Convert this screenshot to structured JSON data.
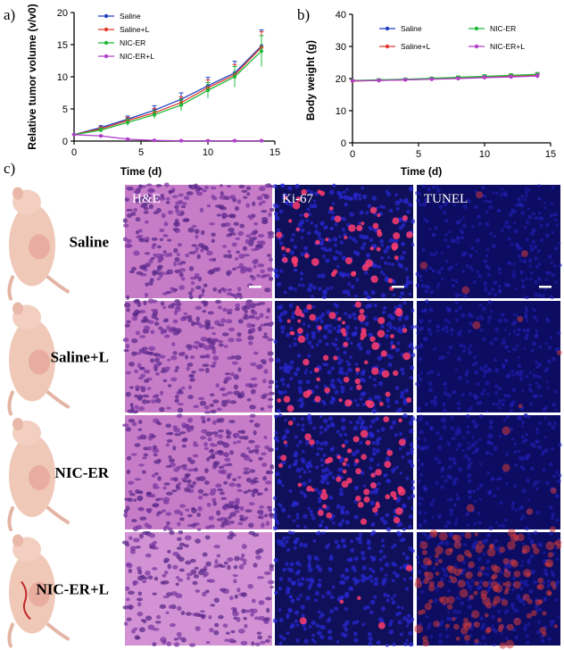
{
  "panel_labels": {
    "a": "a)",
    "b": "b)",
    "c": "c)"
  },
  "colors": {
    "saline": "#1f3fbf",
    "saline_l": "#e03a2c",
    "nic_er": "#22b83a",
    "nic_er_l": "#b040c8",
    "he_bg": "#c77cc8",
    "fluor_bg": "#10105a",
    "ki67_spot": "#ff3d6e",
    "tunel_spot": "#d23a3a",
    "mouse": "#f0c8b8"
  },
  "chart_data": [
    {
      "type": "line",
      "panel": "a)",
      "xlabel": "Time (d)",
      "ylabel": "Relative tumor volume (v/v0)",
      "xlim": [
        0,
        15
      ],
      "ylim": [
        0,
        20
      ],
      "xticks": [
        "0",
        "5",
        "10",
        "15"
      ],
      "yticks": [
        "0",
        "5",
        "10",
        "15",
        "20"
      ],
      "legend_position": "top-left",
      "x": [
        0,
        2,
        4,
        6,
        8,
        10,
        12,
        14
      ],
      "series": [
        {
          "name": "Saline",
          "color": "#1f3fbf",
          "values": [
            1.0,
            2.1,
            3.4,
            4.8,
            6.5,
            8.6,
            10.6,
            14.8
          ],
          "errors": [
            0.1,
            0.3,
            0.5,
            0.7,
            1.0,
            1.3,
            1.8,
            2.5
          ]
        },
        {
          "name": "Saline+L",
          "color": "#e03a2c",
          "values": [
            1.0,
            1.9,
            3.2,
            4.4,
            6.0,
            8.3,
            10.3,
            14.6
          ],
          "errors": [
            0.1,
            0.3,
            0.5,
            0.7,
            0.9,
            1.2,
            1.6,
            2.4
          ]
        },
        {
          "name": "NIC-ER",
          "color": "#22b83a",
          "values": [
            1.0,
            1.7,
            2.9,
            4.1,
            5.6,
            7.9,
            10.0,
            14.0
          ],
          "errors": [
            0.1,
            0.3,
            0.5,
            0.6,
            0.9,
            1.2,
            1.6,
            2.4
          ]
        },
        {
          "name": "NIC-ER+L",
          "color": "#b040c8",
          "values": [
            1.0,
            0.8,
            0.3,
            0.1,
            0.05,
            0.05,
            0.05,
            0.05
          ],
          "errors": [
            0.05,
            0.1,
            0.1,
            0.05,
            0.05,
            0.05,
            0.05,
            0.05
          ]
        }
      ]
    },
    {
      "type": "line",
      "panel": "b)",
      "xlabel": "Time (d)",
      "ylabel": "Body weight (g)",
      "xlim": [
        0,
        15
      ],
      "ylim": [
        0,
        40
      ],
      "xticks": [
        "0",
        "5",
        "10",
        "15"
      ],
      "yticks": [
        "0",
        "10",
        "20",
        "30",
        "40"
      ],
      "legend_position": "top",
      "x": [
        0,
        2,
        4,
        6,
        8,
        10,
        12,
        14
      ],
      "series": [
        {
          "name": "Saline",
          "color": "#1f3fbf",
          "values": [
            19.3,
            19.5,
            19.7,
            19.9,
            20.2,
            20.5,
            20.7,
            20.9
          ],
          "errors": [
            0.3,
            0.3,
            0.3,
            0.3,
            0.4,
            0.5,
            0.5,
            0.6
          ]
        },
        {
          "name": "Saline+L",
          "color": "#e03a2c",
          "values": [
            19.2,
            19.4,
            19.6,
            19.9,
            20.1,
            20.4,
            20.7,
            21.0
          ],
          "errors": [
            0.3,
            0.3,
            0.3,
            0.3,
            0.4,
            0.5,
            0.5,
            0.6
          ]
        },
        {
          "name": "NIC-ER",
          "color": "#22b83a",
          "values": [
            19.4,
            19.6,
            19.8,
            20.1,
            20.4,
            20.7,
            21.0,
            21.3
          ],
          "errors": [
            0.3,
            0.3,
            0.3,
            0.3,
            0.4,
            0.5,
            0.5,
            0.6
          ]
        },
        {
          "name": "NIC-ER+L",
          "color": "#b040c8",
          "values": [
            19.3,
            19.4,
            19.6,
            19.8,
            20.0,
            20.3,
            20.5,
            20.8
          ],
          "errors": [
            0.3,
            0.3,
            0.3,
            0.3,
            0.4,
            0.5,
            0.5,
            0.6
          ]
        }
      ]
    }
  ],
  "figure_c": {
    "column_labels": [
      "H&E",
      "Ki-67",
      "TUNEL"
    ],
    "row_labels": [
      "Saline",
      "Saline+L",
      "NIC-ER",
      "NIC-ER+L"
    ],
    "ki67_density": [
      0.55,
      0.7,
      0.6,
      0.05
    ],
    "tunel_density": [
      0.02,
      0.02,
      0.03,
      0.75
    ]
  }
}
